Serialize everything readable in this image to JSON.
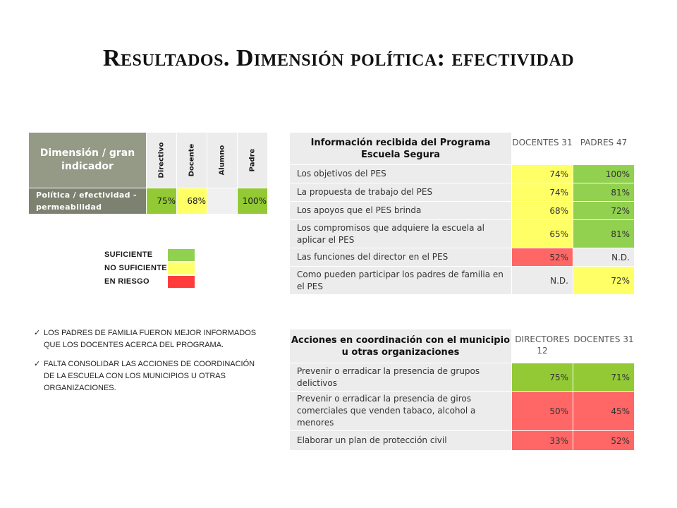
{
  "title": "Resultados. Dimensión política: efectividad",
  "summary_table": {
    "header": "Dimensión / gran indicador",
    "columns": [
      "Directivo",
      "Docente",
      "Alumno",
      "Padre"
    ],
    "row_label": "Política / efectividad - permeabilidad",
    "values": [
      "75%",
      "68%",
      "",
      "100%"
    ]
  },
  "legend": {
    "items": [
      {
        "label": "SUFICIENTE",
        "color": "#92d050"
      },
      {
        "label": "NO SUFICIENTE",
        "color": "#ffff66"
      },
      {
        "label": "EN RIESGO",
        "color": "#ff3b3b"
      }
    ]
  },
  "bullets": [
    "LOS PADRES DE FAMILIA FUERON MEJOR INFORMADOS QUE LOS DOCENTES ACERCA DEL PROGRAMA.",
    "FALTA CONSOLIDAR LAS ACCIONES DE COORDINACIÓN DE LA ESCUELA CON LOS MUNICIPIOS U OTRAS ORGANIZACIONES."
  ],
  "info_table": {
    "header": "Información recibida del Programa Escuela Segura",
    "col1": "DOCENTES 31",
    "col2": "PADRES 47",
    "rows": [
      {
        "label": "Los objetivos del PES",
        "v1": "74%",
        "v2": "100%"
      },
      {
        "label": "La propuesta de trabajo del PES",
        "v1": "74%",
        "v2": "81%"
      },
      {
        "label": "Los apoyos que el PES brinda",
        "v1": "68%",
        "v2": "72%"
      },
      {
        "label": "Los compromisos que adquiere la escuela al aplicar el PES",
        "v1": "65%",
        "v2": "81%"
      },
      {
        "label": "Las funciones del director en el PES",
        "v1": "52%",
        "v2": "N.D."
      },
      {
        "label": "Como pueden participar los padres de familia en el PES",
        "v1": "N.D.",
        "v2": "72%"
      }
    ]
  },
  "actions_table": {
    "header": "Acciones en coordinación con el municipio u otras organizaciones",
    "col1": "DIRECTORES 12",
    "col2": "DOCENTES 31",
    "rows": [
      {
        "label": "Prevenir o erradicar la presencia de grupos delictivos",
        "v1": "75%",
        "v2": "71%"
      },
      {
        "label": "Prevenir o erradicar la presencia de giros comerciales que venden tabaco, alcohol a menores",
        "v1": "50%",
        "v2": "45%"
      },
      {
        "label": "Elaborar un plan de protección civil",
        "v1": "33%",
        "v2": "52%"
      }
    ]
  }
}
